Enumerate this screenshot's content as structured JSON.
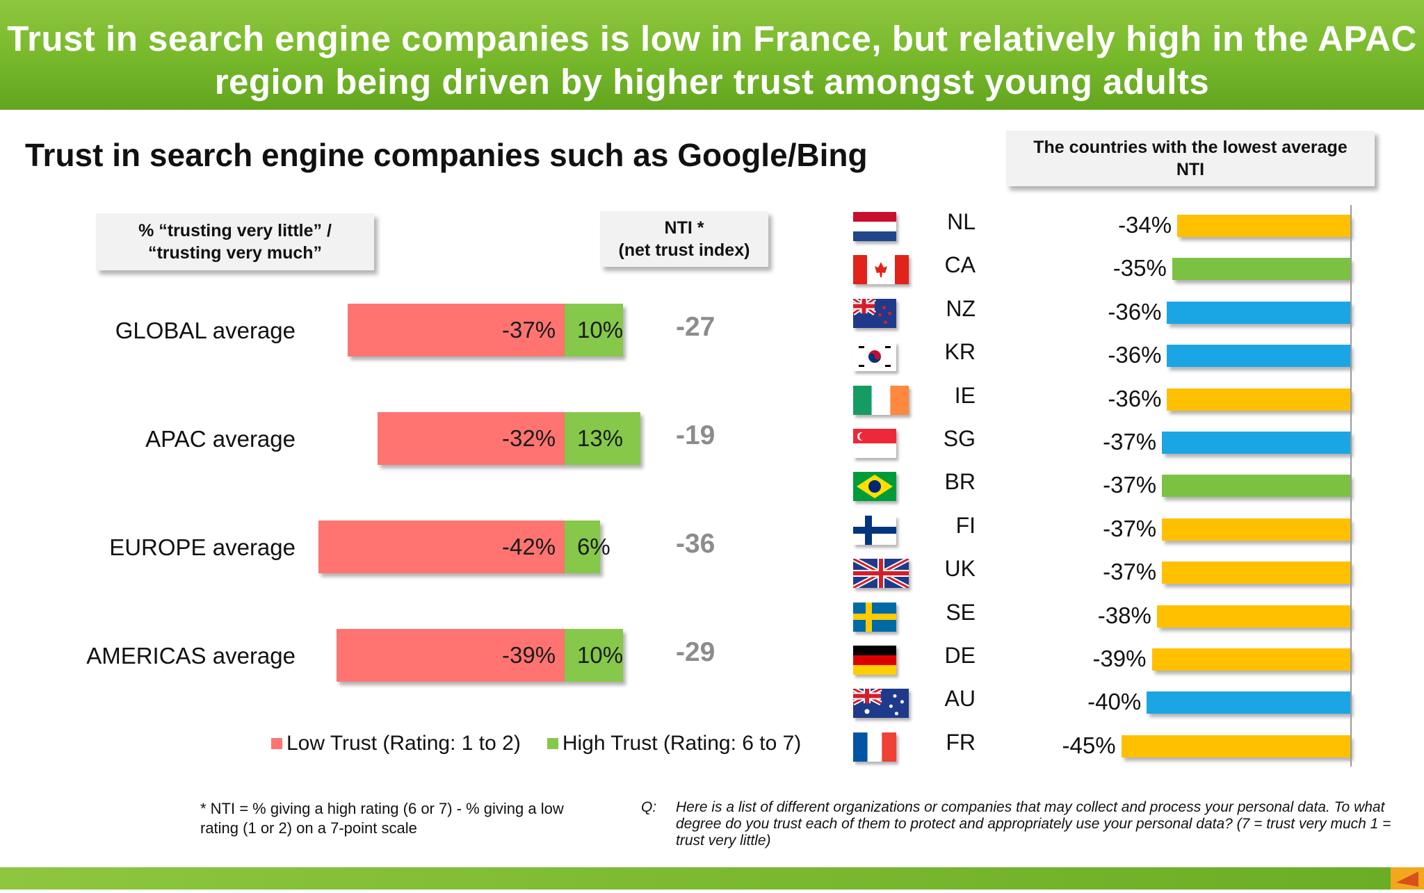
{
  "header": {
    "title_line1": "Trust in search engine companies is low in France, but relatively high in the APAC",
    "title_line2": "region being driven by higher trust amongst young adults"
  },
  "subtitle": "Trust in search engine companies such as Google/Bing",
  "callouts": {
    "left_line1": "% “trusting very  little” /",
    "left_line2": "“trusting very much”",
    "nti_line1": "NTI *",
    "nti_line2": "(net trust index)",
    "right_line1": "The countries with the lowest average",
    "right_line2": "NTI"
  },
  "colors": {
    "low_trust": "#ff7470",
    "high_trust": "#86c84a",
    "europe": "#ffc000",
    "americas": "#7bc242",
    "apac": "#1aa6e4",
    "header_green": "#76b82a"
  },
  "chart_data": [
    {
      "type": "bar",
      "orientation": "horizontal-diverging",
      "categories": [
        "GLOBAL average",
        "APAC average",
        "EUROPE average",
        "AMERICAS average"
      ],
      "series": [
        {
          "name": "Low Trust (Rating: 1 to 2)",
          "values": [
            -37,
            -32,
            -42,
            -39
          ],
          "labels": [
            "-37%",
            "-32%",
            "-42%",
            "-39%"
          ]
        },
        {
          "name": "High Trust (Rating: 6 to 7)",
          "values": [
            10,
            13,
            6,
            10
          ],
          "labels": [
            "10%",
            "13%",
            "6%",
            "10%"
          ]
        }
      ],
      "nti": [
        "-27",
        "-19",
        "-36",
        "-29"
      ],
      "legend": [
        "Low Trust (Rating: 1 to 2)",
        "High Trust (Rating: 6 to 7)"
      ],
      "legend_position": "bottom"
    },
    {
      "type": "bar",
      "orientation": "horizontal",
      "categories": [
        "NL",
        "CA",
        "NZ",
        "KR",
        "IE",
        "SG",
        "BR",
        "FI",
        "UK",
        "SE",
        "DE",
        "AU",
        "FR"
      ],
      "values": [
        -34,
        -35,
        -36,
        -36,
        -36,
        -37,
        -37,
        -37,
        -37,
        -38,
        -39,
        -40,
        -45
      ],
      "labels": [
        "-34%",
        "-35%",
        "-36%",
        "-36%",
        "-36%",
        "-37%",
        "-37%",
        "-37%",
        "-37%",
        "-38%",
        "-39%",
        "-40%",
        "-45%"
      ],
      "regions": [
        "europe",
        "americas",
        "apac",
        "apac",
        "europe",
        "apac",
        "americas",
        "europe",
        "europe",
        "europe",
        "europe",
        "apac",
        "europe"
      ],
      "flags": [
        "flag-nl-icon",
        "flag-ca-icon",
        "flag-nz-icon",
        "flag-kr-icon",
        "flag-ie-icon",
        "flag-sg-icon",
        "flag-br-icon",
        "flag-fi-icon",
        "flag-uk-icon",
        "flag-se-icon",
        "flag-de-icon",
        "flag-au-icon",
        "flag-fr-icon"
      ]
    }
  ],
  "footnote": "* NTI = % giving a high rating (6 or 7) - % giving a low rating (1 or 2) on a 7-point scale",
  "question_label": "Q:",
  "question": "Here is a list of different organizations or companies that may collect and process your personal data.  To what degree do you trust each of them to protect and appropriately use your personal data? (7 = trust very much 1 = trust very little)"
}
